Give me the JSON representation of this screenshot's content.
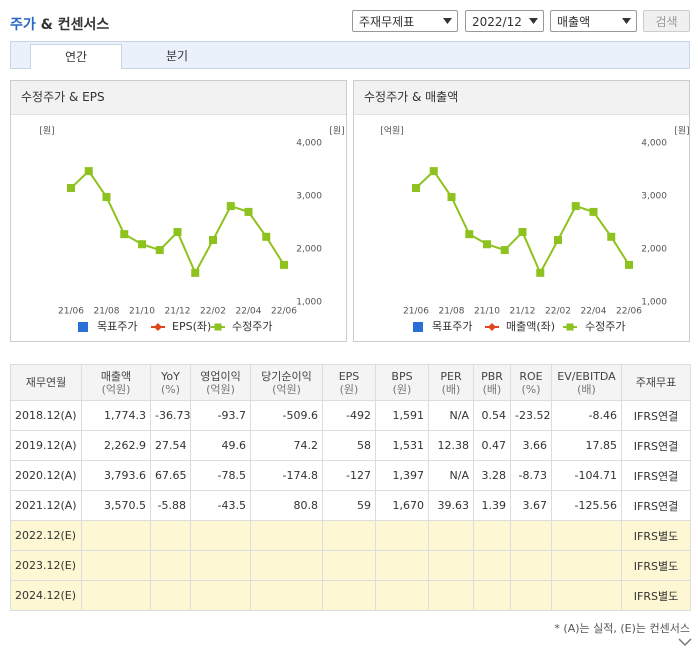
{
  "header": {
    "title_part1": "주가",
    "title_part2": "& 컨센서스",
    "selects": [
      "주재무제표",
      "2022/12",
      "매출액"
    ],
    "button": "검색"
  },
  "tabs": [
    "연간",
    "분기"
  ],
  "chart_data": [
    {
      "type": "line",
      "title": "수정주가 & EPS",
      "y_label": "[원]",
      "y2_label": "[원]",
      "categories": [
        "21/06",
        null,
        "21/08",
        null,
        "21/10",
        null,
        "21/12",
        null,
        "22/02",
        null,
        "22/04",
        null,
        "22/06"
      ],
      "series": [
        {
          "name": "목표주가",
          "color": "#2a6fd6",
          "values": [
            null,
            null,
            null,
            null,
            null,
            null,
            null,
            null,
            null,
            null,
            null,
            null,
            null
          ]
        },
        {
          "name": "EPS(좌)",
          "color": "#e0461e",
          "values": [
            null,
            null,
            null,
            null,
            null,
            null,
            null,
            null,
            null,
            null,
            null,
            null,
            null
          ]
        },
        {
          "name": "수정주가",
          "color": "#8dc21f",
          "values": [
            3150,
            3470,
            2980,
            2280,
            2090,
            1980,
            2320,
            1550,
            2170,
            2810,
            2700,
            2230,
            1700
          ]
        }
      ],
      "ylim": [
        1000,
        4000
      ],
      "yticks": [
        {
          "value": 1000,
          "label": "1,000"
        },
        {
          "value": 2000,
          "label": "2,000"
        },
        {
          "value": 3000,
          "label": "3,000"
        },
        {
          "value": 4000,
          "label": "4,000"
        }
      ]
    },
    {
      "type": "line",
      "title": "수정주가 & 매출액",
      "y_label": "[억원]",
      "y2_label": "[원]",
      "categories": [
        "21/06",
        null,
        "21/08",
        null,
        "21/10",
        null,
        "21/12",
        null,
        "22/02",
        null,
        "22/04",
        null,
        "22/06"
      ],
      "series": [
        {
          "name": "목표주가",
          "color": "#2a6fd6",
          "values": [
            null,
            null,
            null,
            null,
            null,
            null,
            null,
            null,
            null,
            null,
            null,
            null,
            null
          ]
        },
        {
          "name": "매출액(좌)",
          "color": "#e0461e",
          "values": [
            null,
            null,
            null,
            null,
            null,
            null,
            null,
            null,
            null,
            null,
            null,
            null,
            null
          ]
        },
        {
          "name": "수정주가",
          "color": "#8dc21f",
          "values": [
            3150,
            3470,
            2980,
            2280,
            2090,
            1980,
            2320,
            1550,
            2170,
            2810,
            2700,
            2230,
            1700
          ]
        }
      ],
      "ylim": [
        1000,
        4000
      ],
      "yticks": [
        {
          "value": 1000,
          "label": "1,000"
        },
        {
          "value": 2000,
          "label": "2,000"
        },
        {
          "value": 3000,
          "label": "3,000"
        },
        {
          "value": 4000,
          "label": "4,000"
        }
      ]
    }
  ],
  "table": {
    "columns": [
      [
        "재무연월"
      ],
      [
        "매출액",
        "(억원)"
      ],
      [
        "YoY",
        "(%)"
      ],
      [
        "영업이익",
        "(억원)"
      ],
      [
        "당기순이익",
        "(억원)"
      ],
      [
        "EPS",
        "(원)"
      ],
      [
        "BPS",
        "(원)"
      ],
      [
        "PER",
        "(배)"
      ],
      [
        "PBR",
        "(배)"
      ],
      [
        "ROE",
        "(%)"
      ],
      [
        "EV/EBITDA",
        "(배)"
      ],
      [
        "주재무표"
      ]
    ],
    "rows": [
      [
        "2018.12(A)",
        "1,774.3",
        "-36.73",
        "-93.7",
        "-509.6",
        "-492",
        "1,591",
        "N/A",
        "0.54",
        "-23.52",
        "-8.46",
        "IFRS연결"
      ],
      [
        "2019.12(A)",
        "2,262.9",
        "27.54",
        "49.6",
        "74.2",
        "58",
        "1,531",
        "12.38",
        "0.47",
        "3.66",
        "17.85",
        "IFRS연결"
      ],
      [
        "2020.12(A)",
        "3,793.6",
        "67.65",
        "-78.5",
        "-174.8",
        "-127",
        "1,397",
        "N/A",
        "3.28",
        "-8.73",
        "-104.71",
        "IFRS연결"
      ],
      [
        "2021.12(A)",
        "3,570.5",
        "-5.88",
        "-43.5",
        "80.8",
        "59",
        "1,670",
        "39.63",
        "1.39",
        "3.67",
        "-125.56",
        "IFRS연결"
      ],
      [
        "2022.12(E)",
        null,
        null,
        null,
        null,
        null,
        null,
        null,
        null,
        null,
        null,
        "IFRS별도"
      ],
      [
        "2023.12(E)",
        null,
        null,
        null,
        null,
        null,
        null,
        null,
        null,
        null,
        null,
        "IFRS별도"
      ],
      [
        "2024.12(E)",
        null,
        null,
        null,
        null,
        null,
        null,
        null,
        null,
        null,
        null,
        "IFRS별도"
      ]
    ]
  },
  "footnote": "* (A)는 실적, (E)는 컨센서스"
}
